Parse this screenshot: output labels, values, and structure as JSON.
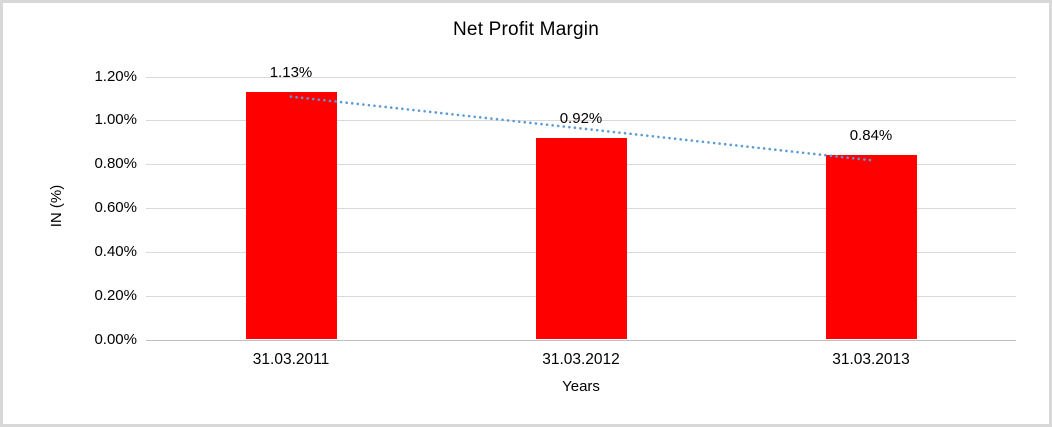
{
  "chart_data": {
    "type": "bar",
    "title": "Net Profit Margin",
    "categories": [
      "31.03.2011",
      "31.03.2012",
      "31.03.2013"
    ],
    "series": [
      {
        "name": "Net Profit Margin",
        "values": [
          1.13,
          0.92,
          0.84
        ]
      }
    ],
    "data_labels": [
      "1.13%",
      "0.92%",
      "0.84%"
    ],
    "xlabel": "Years",
    "ylabel": "IN (%)",
    "y_ticks": [
      "0.00%",
      "0.20%",
      "0.40%",
      "0.60%",
      "0.80%",
      "1.00%",
      "1.20%"
    ],
    "y_tick_step": 0.2,
    "ylim": [
      0,
      1.2
    ],
    "grid": "horizontal",
    "legend": "none",
    "bar_color": "#ff0000",
    "gridline_color": "#d9d9d9",
    "axis_line_color": "#bfbfbf",
    "text_color": "#000000",
    "trendline": {
      "type": "linear",
      "style": "dotted",
      "color": "#5b9bd5"
    }
  }
}
